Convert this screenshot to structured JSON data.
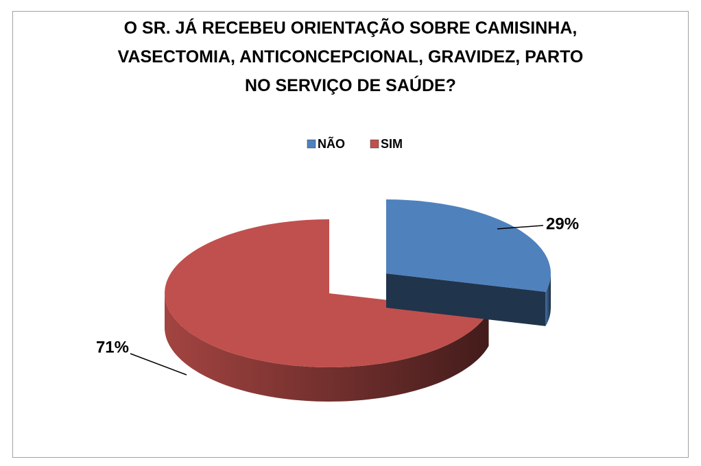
{
  "chart_data": {
    "type": "pie",
    "title": "O SR. JÁ RECEBEU ORIENTAÇÃO SOBRE CAMISINHA, VASECTOMIA, ANTICONCEPCIONAL, GRAVIDEZ, PARTO NO SERVIÇO DE SAÚDE?",
    "categories": [
      "NÃO",
      "SIM"
    ],
    "values": [
      29,
      71
    ],
    "value_labels": [
      "29%",
      "71%"
    ],
    "colors": [
      "#4f81bd",
      "#c0504d"
    ],
    "legend": "top"
  }
}
